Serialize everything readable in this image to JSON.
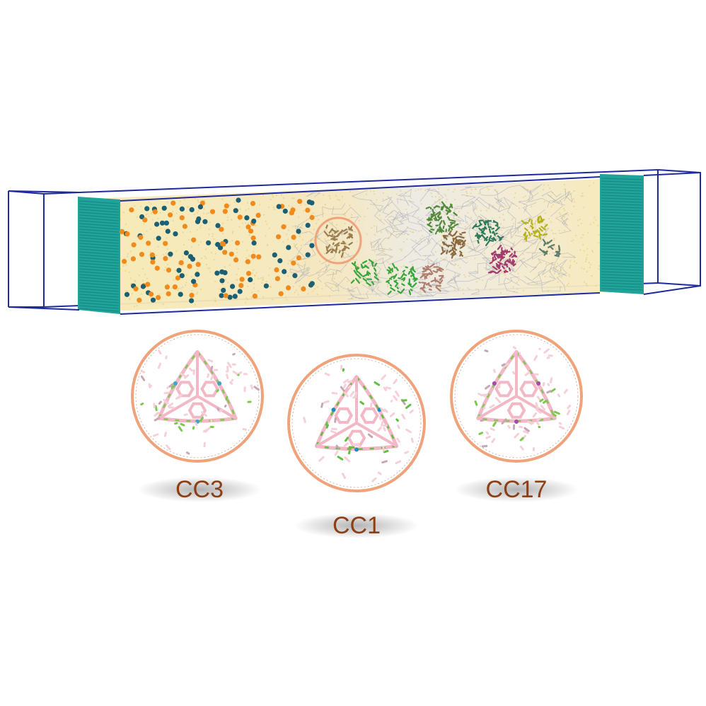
{
  "figure": {
    "cages": [
      {
        "id": "cc3",
        "label": "CC3",
        "linker_color": "#7ec850",
        "accent_color": "#3aa7c9"
      },
      {
        "id": "cc1",
        "label": "CC1",
        "linker_color": "#5fbf3f",
        "accent_color": "#1c8fb8"
      },
      {
        "id": "cc17",
        "label": "CC17",
        "linker_color": "#7ec850",
        "accent_color": "#a54ca8"
      }
    ],
    "colors": {
      "box_edge": "#1f2b9c",
      "wall": "#1fa39a",
      "membrane_fill": "#f7e9b4",
      "ion_orange": "#f08a1c",
      "ion_teal": "#1a5f73",
      "highlight_ring": "#f0a37a",
      "cage_ring": "#f0a37a",
      "cage_core": "#f3b8c6",
      "label_text": "#8b3f17",
      "cluster_colors": [
        "#4f8a3a",
        "#8c6a3e",
        "#2f7a5a",
        "#3aa63a",
        "#b07c6c",
        "#a33a6e",
        "#b5b31d",
        "#5f7d69",
        "#9b7d4e"
      ]
    }
  }
}
